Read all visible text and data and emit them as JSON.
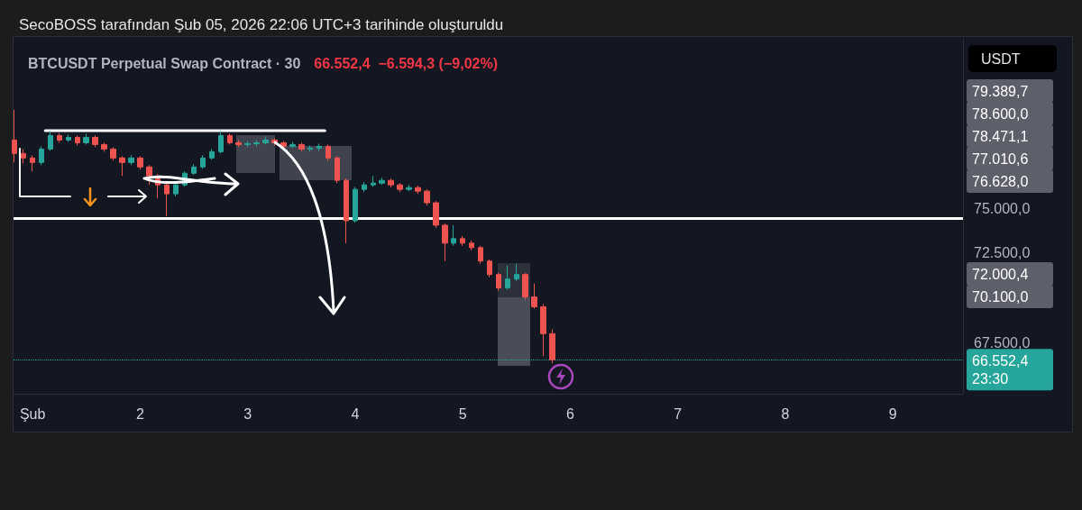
{
  "chart_data": {
    "type": "candlestick",
    "title": "SecoBOSS tarafından Şub 05, 2026 22:06 UTC+3 tarihinde oluşturuldu",
    "subtitle": "BTCUSDT Perpetual Swap Contract · 30",
    "x": [
      "2026-01-31T20:00",
      "2026-01-31T22:00",
      "2026-02-01T00:00",
      "2026-02-01T02:00",
      "2026-02-01T04:00",
      "2026-02-01T06:00",
      "2026-02-01T08:00",
      "2026-02-01T10:00",
      "2026-02-01T12:00",
      "2026-02-01T14:00",
      "2026-02-01T16:00",
      "2026-02-01T18:00",
      "2026-02-01T20:00",
      "2026-02-01T22:00",
      "2026-02-02T00:00",
      "2026-02-02T02:00",
      "2026-02-02T04:00",
      "2026-02-02T06:00",
      "2026-02-02T08:00",
      "2026-02-02T10:00",
      "2026-02-02T12:00",
      "2026-02-02T14:00",
      "2026-02-02T16:00",
      "2026-02-02T18:00",
      "2026-02-02T20:00",
      "2026-02-02T22:00",
      "2026-02-03T00:00",
      "2026-02-03T02:00",
      "2026-02-03T04:00",
      "2026-02-03T06:00",
      "2026-02-03T08:00",
      "2026-02-03T10:00",
      "2026-02-03T12:00",
      "2026-02-03T14:00",
      "2026-02-03T16:00",
      "2026-02-03T18:00",
      "2026-02-03T20:00",
      "2026-02-03T22:00",
      "2026-02-04T00:00",
      "2026-02-04T02:00",
      "2026-02-04T04:00",
      "2026-02-04T06:00",
      "2026-02-04T08:00",
      "2026-02-04T10:00",
      "2026-02-04T12:00",
      "2026-02-04T14:00",
      "2026-02-04T16:00",
      "2026-02-04T18:00",
      "2026-02-04T20:00",
      "2026-02-04T22:00",
      "2026-02-05T00:00",
      "2026-02-05T02:00",
      "2026-02-05T04:00",
      "2026-02-05T06:00",
      "2026-02-05T08:00",
      "2026-02-05T10:00",
      "2026-02-05T12:00",
      "2026-02-05T14:00",
      "2026-02-05T16:00",
      "2026-02-05T18:00",
      "2026-02-05T20:00"
    ],
    "ohlc": [
      [
        78800,
        80480,
        77550,
        78050
      ],
      [
        78050,
        78300,
        77500,
        77800
      ],
      [
        77800,
        77950,
        77050,
        77550
      ],
      [
        77550,
        78450,
        77400,
        78300
      ],
      [
        78300,
        79300,
        78200,
        79050
      ],
      [
        79050,
        79200,
        78650,
        78800
      ],
      [
        78800,
        79100,
        78700,
        78950
      ],
      [
        78950,
        79050,
        78500,
        78650
      ],
      [
        78650,
        79150,
        78550,
        78950
      ],
      [
        78950,
        79050,
        78400,
        78550
      ],
      [
        78550,
        78650,
        78150,
        78300
      ],
      [
        78300,
        78400,
        77650,
        77800
      ],
      [
        77800,
        77900,
        76800,
        77550
      ],
      [
        77550,
        77950,
        77400,
        77800
      ],
      [
        77800,
        77900,
        77150,
        77300
      ],
      [
        77300,
        77400,
        76300,
        76800
      ],
      [
        76800,
        76900,
        75550,
        76300
      ],
      [
        76300,
        76400,
        74550,
        75800
      ],
      [
        75800,
        76450,
        75650,
        76300
      ],
      [
        76300,
        77050,
        76200,
        76950
      ],
      [
        76950,
        77450,
        76850,
        77300
      ],
      [
        77300,
        77950,
        77200,
        77800
      ],
      [
        77800,
        78300,
        77700,
        78150
      ],
      [
        78150,
        79300,
        78050,
        79050
      ],
      [
        79050,
        79150,
        78550,
        78650
      ],
      [
        78650,
        78800,
        78400,
        78550
      ],
      [
        78550,
        78750,
        78400,
        78600
      ],
      [
        78600,
        78800,
        78450,
        78650
      ],
      [
        78650,
        79000,
        78550,
        78800
      ],
      [
        78800,
        78900,
        78500,
        78650
      ],
      [
        78650,
        78750,
        78300,
        78450
      ],
      [
        78450,
        78700,
        78350,
        78550
      ],
      [
        78550,
        78650,
        78150,
        78300
      ],
      [
        78300,
        78500,
        78150,
        78350
      ],
      [
        78350,
        78600,
        78200,
        78450
      ],
      [
        78450,
        78550,
        77650,
        77800
      ],
      [
        77800,
        77900,
        76400,
        76550
      ],
      [
        76550,
        76650,
        73050,
        74300
      ],
      [
        74300,
        76200,
        74200,
        76050
      ],
      [
        76050,
        76450,
        75900,
        76300
      ],
      [
        76300,
        76800,
        76200,
        76400
      ],
      [
        76400,
        76700,
        76300,
        76550
      ],
      [
        76550,
        76650,
        76150,
        76300
      ],
      [
        76300,
        76400,
        75900,
        76050
      ],
      [
        76050,
        76300,
        75950,
        76150
      ],
      [
        76150,
        76250,
        75800,
        75950
      ],
      [
        75950,
        76050,
        75150,
        75300
      ],
      [
        75300,
        75400,
        73900,
        74050
      ],
      [
        74050,
        74150,
        72050,
        73050
      ],
      [
        73050,
        74050,
        72900,
        73300
      ],
      [
        73300,
        73450,
        72900,
        73050
      ],
      [
        73050,
        73200,
        72650,
        72800
      ],
      [
        72800,
        72900,
        71900,
        72050
      ],
      [
        72050,
        72150,
        71150,
        71300
      ],
      [
        71300,
        71400,
        70400,
        70550
      ],
      [
        70550,
        71800,
        70450,
        71050
      ],
      [
        71050,
        71900,
        70950,
        71300
      ],
      [
        71300,
        71400,
        69900,
        70050
      ],
      [
        70050,
        70800,
        69400,
        69500
      ],
      [
        69500,
        69650,
        66750,
        68000
      ],
      [
        68000,
        68250,
        66350,
        66550
      ]
    ],
    "series": [
      {
        "type": "line",
        "x": [
          "2026-02-01T02:50",
          "2026-02-03T17:15"
        ],
        "values": [
          79320,
          79320
        ],
        "color": "#ffffff"
      }
    ],
    "xlim": [
      "2026-01-31T19:45",
      "2026-02-09T15:40"
    ],
    "xticks": [
      {
        "value": "2026-02-01T00:00",
        "label": "Şub"
      },
      {
        "value": "2026-02-02T00:00",
        "label": "2"
      },
      {
        "value": "2026-02-03T00:00",
        "label": "3"
      },
      {
        "value": "2026-02-04T00:00",
        "label": "4"
      },
      {
        "value": "2026-02-05T00:00",
        "label": "5"
      },
      {
        "value": "2026-02-06T00:00",
        "label": "6"
      },
      {
        "value": "2026-02-07T00:00",
        "label": "7"
      },
      {
        "value": "2026-02-08T00:00",
        "label": "8"
      },
      {
        "value": "2026-02-09T00:00",
        "label": "9"
      }
    ],
    "ylim": [
      64650,
      84500
    ],
    "yticks": [
      {
        "value": 67500,
        "label": "67.500,0"
      },
      {
        "value": 72500,
        "label": "72.500,0"
      },
      {
        "value": 75000,
        "label": "75.000,0"
      }
    ],
    "ref_lines": [
      {
        "axis": "y",
        "value": 74450,
        "color": "#ffffff",
        "line_style": "solid"
      },
      {
        "axis": "y",
        "value": 66552.4,
        "label": "66.552,4",
        "color": "#26a69a",
        "line_style": "dotted"
      }
    ],
    "annotations": [
      "66.552,4  −6.594,3 (−9,02%)",
      "USDT",
      "23:30",
      "79.389,7",
      "78.600,0",
      "78.471,1",
      "77.010,6",
      "76.628,0",
      "72.000,4",
      "70.100,0"
    ],
    "grid": false
  }
}
